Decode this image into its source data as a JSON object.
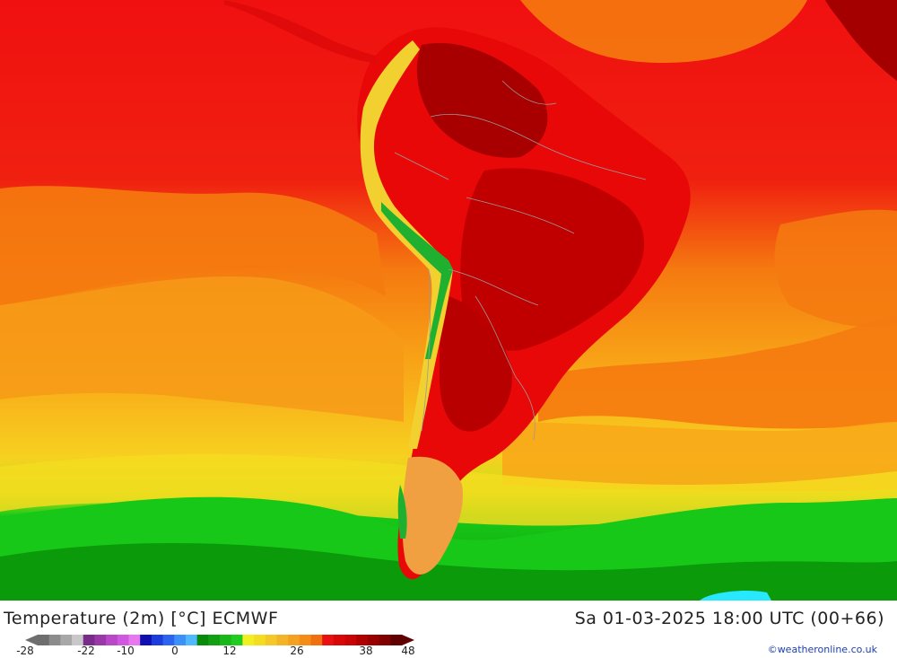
{
  "map": {
    "region": "South America",
    "colors": {
      "ocean_hot": "#f01010",
      "ocean_orange": "#f57a10",
      "ocean_amber": "#f8a818",
      "ocean_yellow": "#f7e020",
      "cold_green": "#18c818",
      "cold_green_dark": "#0a9a0a",
      "land_dark": "#c00000",
      "land_maroon": "#a40000",
      "andes_yellow": "#f2d030",
      "andes_green": "#20b030",
      "patagonia": "#f0a040",
      "ice_cyan": "#28e8ff"
    }
  },
  "footer": {
    "title": "Temperature (2m) [°C] ECMWF",
    "datetime": "Sa 01-03-2025 18:00 UTC (00+66)",
    "credit": "©weatheronline.co.uk"
  },
  "legend": {
    "ticks": [
      "-28",
      "-22",
      "-10",
      "0",
      "12",
      "26",
      "38",
      "48"
    ],
    "colors": [
      "#6e6e6e",
      "#8c8c8c",
      "#a8a8a8",
      "#c8c8c8",
      "#7a2c8c",
      "#9a38aa",
      "#b848c8",
      "#d058e0",
      "#e878f0",
      "#1010b0",
      "#1c3cdc",
      "#2c64f0",
      "#3c90f8",
      "#50b8fc",
      "#0a8a0a",
      "#12a012",
      "#18b818",
      "#20cc20",
      "#f0f020",
      "#f4dc20",
      "#f4c828",
      "#f4b428",
      "#f4a020",
      "#f48c18",
      "#f07010",
      "#e81010",
      "#d80808",
      "#c80404",
      "#b00000",
      "#980000",
      "#800000",
      "#600000"
    ]
  }
}
